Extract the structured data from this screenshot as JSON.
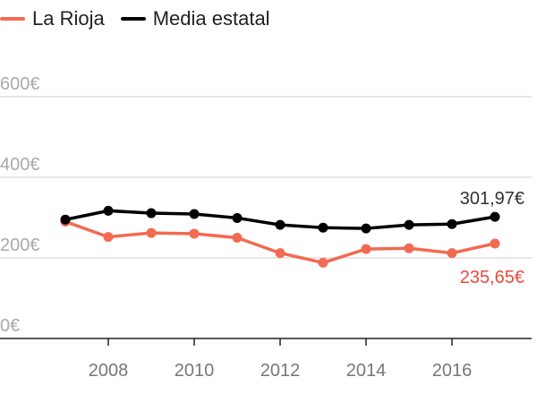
{
  "chart_data": {
    "type": "line",
    "title": "",
    "xlabel": "",
    "ylabel": "",
    "x": [
      2007,
      2008,
      2009,
      2010,
      2011,
      2012,
      2013,
      2014,
      2015,
      2016,
      2017
    ],
    "xlim": [
      2006.5,
      2017.5
    ],
    "ylim": [
      0,
      650
    ],
    "y_ticks": [
      0,
      200,
      400,
      600
    ],
    "y_tick_labels": [
      "0€",
      "200€",
      "400€",
      "600€"
    ],
    "x_ticks": [
      2008,
      2010,
      2012,
      2014,
      2016
    ],
    "x_tick_labels": [
      "2008",
      "2010",
      "2012",
      "2014",
      "2016"
    ],
    "grid": "horizontal",
    "legend": "top-left",
    "series": [
      {
        "name": "La Rioja",
        "color": "#f26a50",
        "values": [
          290,
          252,
          262,
          260,
          250,
          212,
          188,
          222,
          224,
          212,
          235.65
        ],
        "end_label": "235,65€",
        "end_label_color": "#e94b3c"
      },
      {
        "name": "Media estatal",
        "color": "#000000",
        "values": [
          295,
          317,
          311,
          309,
          299,
          282,
          275,
          273,
          282,
          284,
          301.97
        ],
        "end_label": "301,97€",
        "end_label_color": "#333333"
      }
    ]
  }
}
